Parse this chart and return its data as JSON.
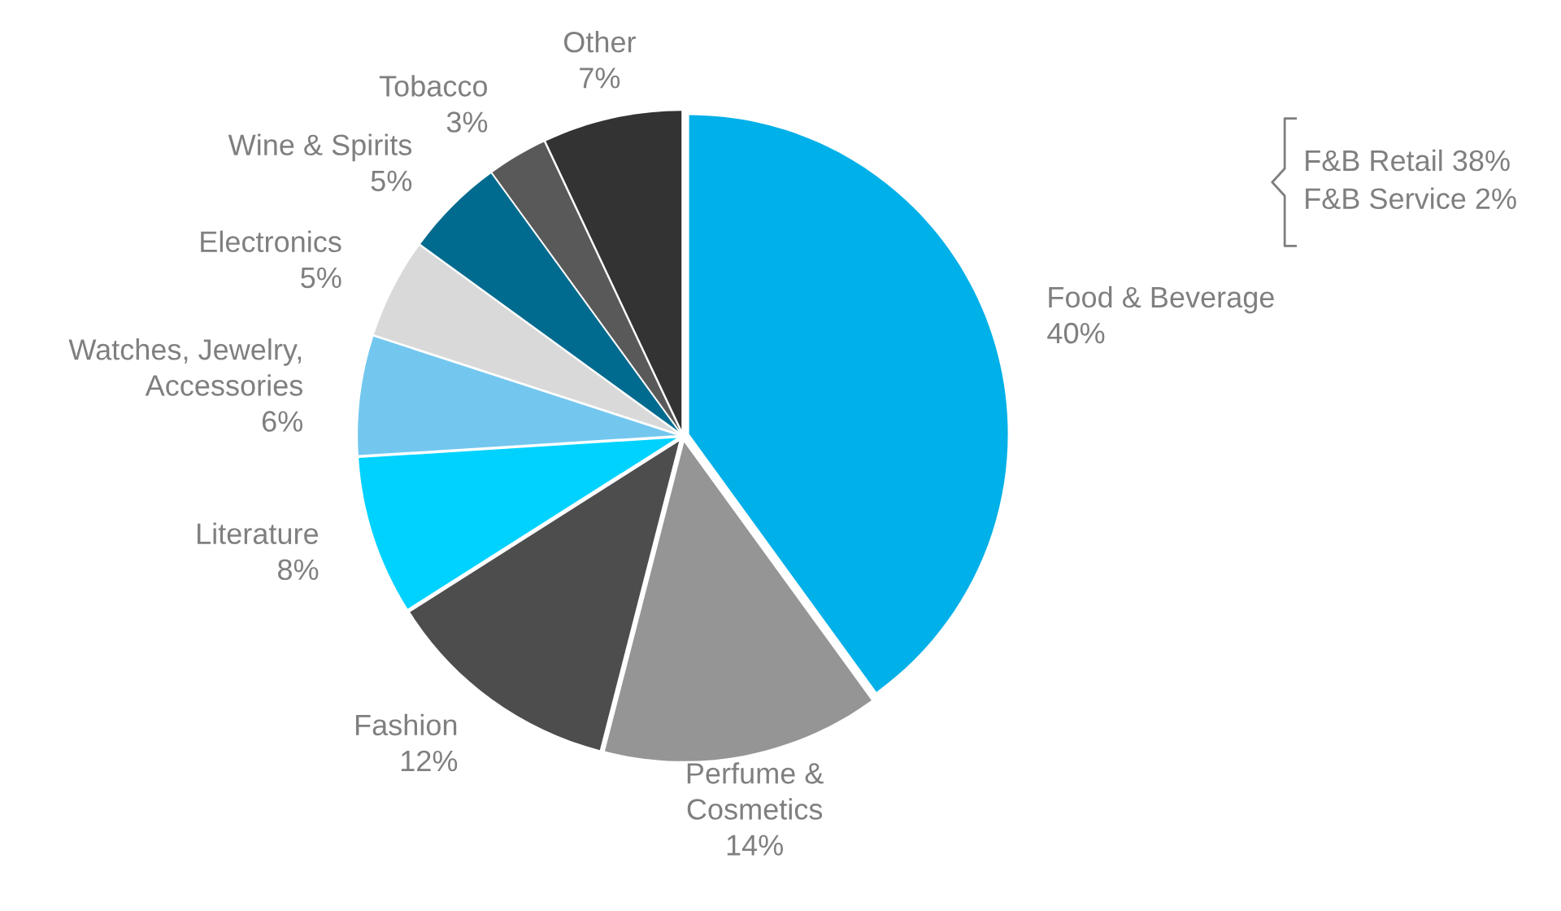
{
  "chart_data": {
    "type": "pie",
    "categories": [
      "Food & Beverage",
      "Perfume &\nCosmetics",
      "Fashion",
      "Literature",
      "Watches, Jewelry,\nAccessories",
      "Electronics",
      "Wine & Spirits",
      "Tobacco",
      "Other"
    ],
    "values": [
      40,
      14,
      12,
      8,
      6,
      5,
      5,
      3,
      7
    ],
    "value_labels": [
      "40%",
      "14%",
      "12%",
      "8%",
      "6%",
      "5%",
      "5%",
      "3%",
      "7%"
    ],
    "colors": [
      "#00b0e8",
      "#959595",
      "#4d4d4d",
      "#00d2ff",
      "#73c7ef",
      "#d9d9d9",
      "#006b8f",
      "#595959",
      "#333333"
    ],
    "annotations": [
      "F&B Retail 38%",
      "F&B Service 2%"
    ],
    "legend": false
  }
}
